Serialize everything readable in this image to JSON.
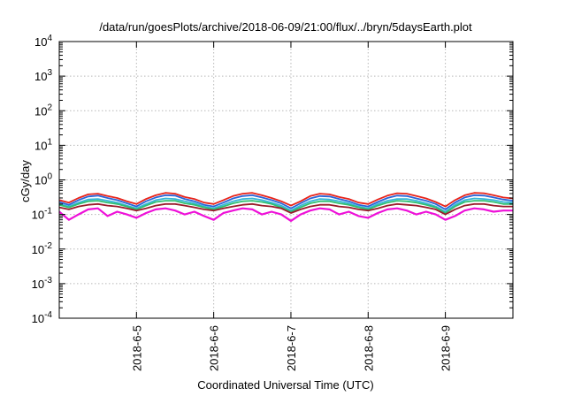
{
  "chart_data": {
    "type": "line",
    "title": "/data/run/goesPlots/archive/2018-06-09/21:00/flux/../bryn/5daysEarth.plot",
    "xlabel": "Coordinated Universal Time (UTC)",
    "ylabel": "cGy/day",
    "yscale": "log",
    "ylim": [
      0.0001,
      10000
    ],
    "y_ticks": [
      {
        "base": "10",
        "exp": "-4"
      },
      {
        "base": "10",
        "exp": "-3"
      },
      {
        "base": "10",
        "exp": "-2"
      },
      {
        "base": "10",
        "exp": "-1"
      },
      {
        "base": "10",
        "exp": "0"
      },
      {
        "base": "10",
        "exp": "1"
      },
      {
        "base": "10",
        "exp": "2"
      },
      {
        "base": "10",
        "exp": "3"
      },
      {
        "base": "10",
        "exp": "4"
      }
    ],
    "x_range": [
      "2018-06-04 00:00",
      "2018-06-09 21:00"
    ],
    "x_ticks": [
      "2018-6-5",
      "2018-6-6",
      "2018-6-7",
      "2018-6-8",
      "2018-6-9"
    ],
    "grid": true,
    "legend": "none",
    "x": [
      "06-04 00:00",
      "06-04 03:00",
      "06-04 06:00",
      "06-04 09:00",
      "06-04 12:00",
      "06-04 15:00",
      "06-04 18:00",
      "06-04 21:00",
      "06-05 00:00",
      "06-05 03:00",
      "06-05 06:00",
      "06-05 09:00",
      "06-05 12:00",
      "06-05 15:00",
      "06-05 18:00",
      "06-05 21:00",
      "06-06 00:00",
      "06-06 03:00",
      "06-06 06:00",
      "06-06 09:00",
      "06-06 12:00",
      "06-06 15:00",
      "06-06 18:00",
      "06-06 21:00",
      "06-07 00:00",
      "06-07 03:00",
      "06-07 06:00",
      "06-07 09:00",
      "06-07 12:00",
      "06-07 15:00",
      "06-07 18:00",
      "06-07 21:00",
      "06-08 00:00",
      "06-08 03:00",
      "06-08 06:00",
      "06-08 09:00",
      "06-08 12:00",
      "06-08 15:00",
      "06-08 18:00",
      "06-08 21:00",
      "06-09 00:00",
      "06-09 03:00",
      "06-09 06:00",
      "06-09 09:00",
      "06-09 12:00",
      "06-09 15:00",
      "06-09 18:00",
      "06-09 21:00"
    ],
    "series": [
      {
        "color": "#e8231a",
        "values": [
          0.26,
          0.22,
          0.3,
          0.38,
          0.4,
          0.34,
          0.3,
          0.24,
          0.2,
          0.28,
          0.36,
          0.42,
          0.4,
          0.32,
          0.28,
          0.22,
          0.2,
          0.26,
          0.34,
          0.4,
          0.42,
          0.36,
          0.3,
          0.24,
          0.18,
          0.24,
          0.34,
          0.4,
          0.38,
          0.32,
          0.28,
          0.22,
          0.2,
          0.27,
          0.35,
          0.41,
          0.4,
          0.34,
          0.29,
          0.23,
          0.17,
          0.26,
          0.36,
          0.42,
          0.41,
          0.36,
          0.31,
          0.29
        ]
      },
      {
        "color": "#2a64d8",
        "values": [
          0.23,
          0.19,
          0.26,
          0.33,
          0.35,
          0.3,
          0.26,
          0.21,
          0.17,
          0.24,
          0.31,
          0.36,
          0.35,
          0.28,
          0.24,
          0.19,
          0.17,
          0.22,
          0.29,
          0.34,
          0.36,
          0.31,
          0.26,
          0.21,
          0.15,
          0.21,
          0.29,
          0.34,
          0.33,
          0.28,
          0.24,
          0.19,
          0.17,
          0.23,
          0.3,
          0.35,
          0.34,
          0.29,
          0.25,
          0.2,
          0.14,
          0.22,
          0.31,
          0.36,
          0.35,
          0.31,
          0.27,
          0.25
        ]
      },
      {
        "color": "#36b5d8",
        "values": [
          0.2,
          0.17,
          0.22,
          0.27,
          0.28,
          0.25,
          0.22,
          0.18,
          0.15,
          0.2,
          0.26,
          0.29,
          0.28,
          0.24,
          0.21,
          0.17,
          0.15,
          0.19,
          0.24,
          0.28,
          0.29,
          0.26,
          0.22,
          0.18,
          0.13,
          0.18,
          0.24,
          0.28,
          0.27,
          0.24,
          0.21,
          0.17,
          0.15,
          0.2,
          0.25,
          0.28,
          0.28,
          0.25,
          0.21,
          0.17,
          0.12,
          0.19,
          0.26,
          0.29,
          0.28,
          0.26,
          0.23,
          0.22
        ]
      },
      {
        "color": "#2fbf71",
        "values": [
          0.19,
          0.16,
          0.2,
          0.24,
          0.25,
          0.22,
          0.2,
          0.17,
          0.14,
          0.18,
          0.23,
          0.25,
          0.25,
          0.21,
          0.19,
          0.16,
          0.14,
          0.17,
          0.21,
          0.24,
          0.25,
          0.23,
          0.2,
          0.16,
          0.12,
          0.16,
          0.21,
          0.24,
          0.24,
          0.21,
          0.19,
          0.16,
          0.14,
          0.18,
          0.22,
          0.25,
          0.24,
          0.22,
          0.19,
          0.16,
          0.11,
          0.17,
          0.23,
          0.25,
          0.25,
          0.23,
          0.2,
          0.2
        ]
      },
      {
        "color": "#9a1a2a",
        "values": [
          0.16,
          0.14,
          0.17,
          0.19,
          0.2,
          0.18,
          0.17,
          0.15,
          0.13,
          0.15,
          0.18,
          0.2,
          0.2,
          0.18,
          0.16,
          0.14,
          0.13,
          0.15,
          0.17,
          0.19,
          0.2,
          0.18,
          0.17,
          0.15,
          0.11,
          0.14,
          0.17,
          0.19,
          0.19,
          0.17,
          0.16,
          0.14,
          0.13,
          0.15,
          0.18,
          0.2,
          0.19,
          0.18,
          0.16,
          0.14,
          0.1,
          0.14,
          0.18,
          0.2,
          0.2,
          0.18,
          0.17,
          0.17
        ]
      },
      {
        "color": "#ee10d8",
        "values": [
          0.12,
          0.07,
          0.1,
          0.14,
          0.15,
          0.09,
          0.12,
          0.1,
          0.08,
          0.11,
          0.14,
          0.15,
          0.13,
          0.1,
          0.12,
          0.09,
          0.07,
          0.11,
          0.13,
          0.15,
          0.14,
          0.1,
          0.12,
          0.1,
          0.065,
          0.1,
          0.13,
          0.15,
          0.14,
          0.1,
          0.12,
          0.09,
          0.08,
          0.11,
          0.14,
          0.15,
          0.13,
          0.1,
          0.12,
          0.1,
          0.07,
          0.09,
          0.13,
          0.15,
          0.14,
          0.12,
          0.13,
          0.13
        ]
      }
    ]
  }
}
